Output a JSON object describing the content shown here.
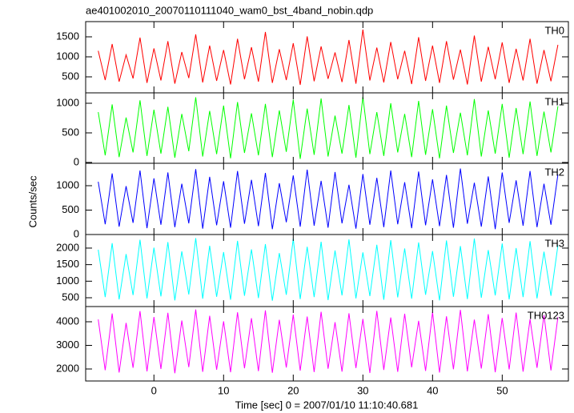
{
  "chart_data": {
    "type": "line",
    "title": "ae401002010_20070110111040_wam0_bst_4band_nobin.qdp",
    "xlabel": "Time [sec] 0 = 2007/01/10 11:10:40.681",
    "ylabel": "Counts/sec",
    "xlim": [
      -9.8,
      59.5
    ],
    "xticks": [
      0,
      10,
      20,
      30,
      40,
      50
    ],
    "x": [
      -8,
      -7,
      -6,
      -5,
      -4,
      -3,
      -2,
      -1,
      0,
      1,
      2,
      3,
      4,
      5,
      6,
      7,
      8,
      9,
      10,
      11,
      12,
      13,
      14,
      15,
      16,
      17,
      18,
      19,
      20,
      21,
      22,
      23,
      24,
      25,
      26,
      27,
      28,
      29,
      30,
      31,
      32,
      33,
      34,
      35,
      36,
      37,
      38,
      39,
      40,
      41,
      42,
      43,
      44,
      45,
      46,
      47,
      48,
      49,
      50,
      51,
      52,
      53,
      54,
      55,
      56,
      57,
      58
    ],
    "series": [
      {
        "name": "TH0",
        "color": "#ff0000",
        "ylim": [
          100,
          1880
        ],
        "yticks": [
          500,
          1000,
          1500
        ],
        "values": [
          1150,
          420,
          1320,
          380,
          1050,
          460,
          1480,
          350,
          1210,
          410,
          1390,
          330,
          1120,
          470,
          1560,
          360,
          1280,
          400,
          1170,
          310,
          1450,
          440,
          1240,
          380,
          1620,
          350,
          1190,
          420,
          1340,
          300,
          1510,
          390,
          1260,
          450,
          1110,
          370,
          1420,
          330,
          1680,
          410,
          1230,
          360,
          1370,
          440,
          1150,
          320,
          1490,
          400,
          1280,
          350,
          1390,
          430,
          1180,
          310,
          1530,
          380,
          1250,
          440,
          1360,
          350,
          1200,
          410,
          1450,
          330,
          1170,
          390,
          1300
        ]
      },
      {
        "name": "TH1",
        "color": "#00ff00",
        "ylim": [
          -14,
          1176
        ],
        "yticks": [
          0,
          500,
          1000
        ],
        "values": [
          850,
          120,
          980,
          90,
          760,
          170,
          1050,
          110,
          890,
          150,
          940,
          80,
          820,
          190,
          1100,
          100,
          870,
          140,
          960,
          70,
          1020,
          160,
          830,
          120,
          990,
          90,
          880,
          180,
          1060,
          60,
          910,
          130,
          1080,
          100,
          790,
          150,
          970,
          80,
          1110,
          140,
          850,
          110,
          1000,
          170,
          820,
          90,
          1040,
          130,
          900,
          70,
          960,
          160,
          840,
          120,
          1070,
          100,
          880,
          150,
          990,
          80,
          920,
          140,
          1030,
          110,
          860,
          170,
          950
        ]
      },
      {
        "name": "TH2",
        "color": "#0000ff",
        "ylim": [
          0,
          1459
        ],
        "yticks": [
          0,
          500,
          1000
        ],
        "values": [
          1080,
          210,
          1250,
          160,
          990,
          240,
          1310,
          130,
          1150,
          200,
          1270,
          150,
          1040,
          230,
          1340,
          120,
          1180,
          190,
          1090,
          140,
          1300,
          220,
          1120,
          170,
          1260,
          110,
          1050,
          250,
          1210,
          160,
          1330,
          180,
          1100,
          140,
          1280,
          230,
          1020,
          120,
          1240,
          200,
          1160,
          150,
          1310,
          210,
          1070,
          130,
          1290,
          190,
          1130,
          170,
          1220,
          140,
          1350,
          220,
          1060,
          160,
          1190,
          110,
          1270,
          240,
          1110,
          180,
          1300,
          150,
          1040,
          200,
          1230
        ]
      },
      {
        "name": "TH3",
        "color": "#00ffff",
        "ylim": [
          234,
          2410
        ],
        "yticks": [
          500,
          1000,
          1500,
          2000
        ],
        "values": [
          1950,
          520,
          2150,
          450,
          1820,
          580,
          2250,
          480,
          2010,
          540,
          2180,
          420,
          1900,
          600,
          2300,
          470,
          2070,
          530,
          1880,
          440,
          2220,
          560,
          1960,
          490,
          2120,
          410,
          1850,
          590,
          2280,
          460,
          2040,
          520,
          2190,
          430,
          1930,
          570,
          2260,
          480,
          1870,
          550,
          2100,
          440,
          2240,
          510,
          1990,
          470,
          2170,
          590,
          1910,
          420,
          2230,
          530,
          2060,
          460,
          2290,
          500,
          1940,
          570,
          2140,
          450,
          2000,
          520,
          2210,
          480,
          1890,
          560,
          2080
        ]
      },
      {
        "name": "TH0123",
        "color": "#ff00ff",
        "ylim": [
          1492,
          4644
        ],
        "yticks": [
          2000,
          3000,
          4000
        ],
        "values": [
          4100,
          1950,
          4350,
          1850,
          3950,
          2050,
          4450,
          1900,
          4200,
          2000,
          4380,
          1820,
          4050,
          2080,
          4520,
          1880,
          4250,
          1970,
          4020,
          1860,
          4400,
          2030,
          4150,
          1910,
          4480,
          1840,
          4080,
          2060,
          4300,
          1930,
          4220,
          1870,
          4420,
          2010,
          3980,
          1890,
          4360,
          2040,
          4120,
          1830,
          4460,
          1960,
          4180,
          1880,
          4340,
          2070,
          4040,
          1920,
          4410,
          1850,
          4230,
          1990,
          4500,
          1900,
          4090,
          2020,
          4320,
          1860,
          4160,
          1980,
          4390,
          1890,
          4110,
          2050,
          4280,
          1940,
          4200
        ]
      }
    ]
  }
}
